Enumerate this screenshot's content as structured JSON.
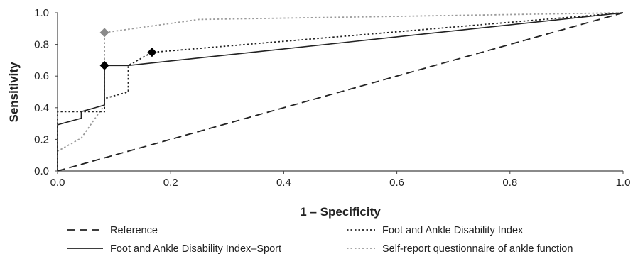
{
  "chart_data": {
    "type": "line",
    "xlabel": "1 – Specificity",
    "ylabel": "Sensitivity",
    "xlim": [
      0.0,
      1.0
    ],
    "ylim": [
      0.0,
      1.0
    ],
    "x_ticks": [
      "0.0",
      "0.2",
      "0.4",
      "0.6",
      "0.8",
      "1.0"
    ],
    "y_ticks": [
      "0.0",
      "0.2",
      "0.4",
      "0.6",
      "0.8",
      "1.0"
    ],
    "grid": false,
    "legend_position": "bottom",
    "series": [
      {
        "name": "Reference",
        "style": "dashed",
        "color": "#222222",
        "x": [
          0.0,
          1.0
        ],
        "y": [
          0.0,
          1.0
        ]
      },
      {
        "name": "Foot and Ankle Disability Index",
        "style": "dotted",
        "color": "#222222",
        "x": [
          0.0,
          0.0,
          0.083,
          0.083,
          0.125,
          0.125,
          0.167,
          1.0
        ],
        "y": [
          0.0,
          0.375,
          0.375,
          0.458,
          0.5,
          0.667,
          0.75,
          1.0
        ],
        "marker": {
          "x": 0.167,
          "y": 0.75,
          "color": "#000000"
        }
      },
      {
        "name": "Foot and Ankle Disability Index–Sport",
        "style": "solid",
        "color": "#222222",
        "x": [
          0.0,
          0.0,
          0.042,
          0.042,
          0.083,
          0.083,
          0.125,
          1.0
        ],
        "y": [
          0.0,
          0.292,
          0.333,
          0.375,
          0.417,
          0.667,
          0.667,
          1.0
        ],
        "marker": {
          "x": 0.083,
          "y": 0.667,
          "color": "#000000"
        }
      },
      {
        "name": "Self-report questionnaire of ankle function",
        "style": "dotted",
        "color": "#9a9a9a",
        "x": [
          0.0,
          0.0,
          0.042,
          0.083,
          0.083,
          0.25,
          1.0
        ],
        "y": [
          0.0,
          0.125,
          0.208,
          0.417,
          0.875,
          0.958,
          1.0
        ],
        "marker": {
          "x": 0.083,
          "y": 0.875,
          "color": "#8a8a8a"
        }
      }
    ]
  }
}
